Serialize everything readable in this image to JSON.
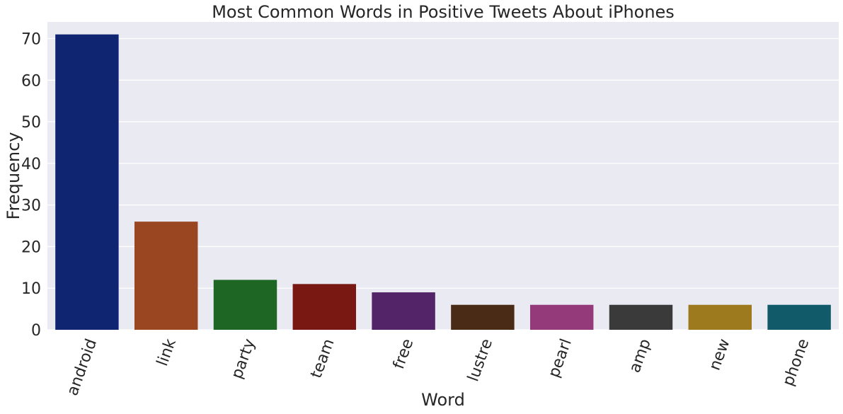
{
  "chart_data": {
    "type": "bar",
    "title": "Most Common Words in Positive Tweets About iPhones",
    "xlabel": "Word",
    "ylabel": "Frequency",
    "categories": [
      "android",
      "link",
      "party",
      "team",
      "free",
      "lustre",
      "pearl",
      "amp",
      "new",
      "phone"
    ],
    "values": [
      71,
      26,
      12,
      11,
      9,
      6,
      6,
      6,
      6,
      6
    ],
    "colors": [
      "#0f2572",
      "#9a4621",
      "#1e6623",
      "#791713",
      "#542468",
      "#4a2c16",
      "#94397a",
      "#3a3a3a",
      "#9e7a1f",
      "#105a69"
    ],
    "ylim": [
      0,
      74
    ],
    "yticks": [
      0,
      10,
      20,
      30,
      40,
      50,
      60,
      70
    ],
    "grid": true,
    "background": "#eaeaf2",
    "grid_color": "#ffffff",
    "x_tick_rotation_deg": 70
  }
}
